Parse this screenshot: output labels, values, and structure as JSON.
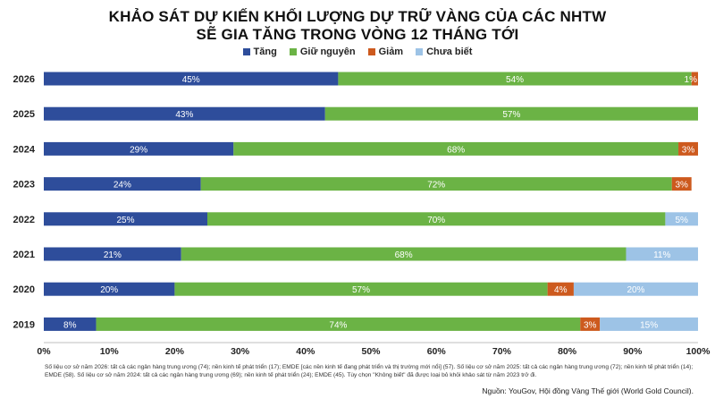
{
  "chart_data": {
    "type": "bar",
    "orientation": "horizontal",
    "stacked": true,
    "title": "KHẢO SÁT DỰ KIẾN KHỐI LƯỢNG DỰ TRỮ VÀNG CỦA CÁC NHTW",
    "subtitle": "SẼ GIA TĂNG TRONG VÒNG 12 THÁNG TỚI",
    "categories": [
      "2026",
      "2025",
      "2024",
      "2023",
      "2022",
      "2021",
      "2020",
      "2019"
    ],
    "series": [
      {
        "name": "Tăng",
        "color": "#2e4d9b",
        "values": [
          45,
          43,
          29,
          24,
          25,
          21,
          20,
          8
        ]
      },
      {
        "name": "Giữ nguyên",
        "color": "#6bb345",
        "values": [
          54,
          57,
          68,
          72,
          70,
          68,
          57,
          74
        ]
      },
      {
        "name": "Giảm",
        "color": "#cd5a1e",
        "values": [
          1,
          0,
          3,
          3,
          0,
          0,
          4,
          3
        ]
      },
      {
        "name": "Chưa biết",
        "color": "#9dc3e6",
        "values": [
          0,
          0,
          0,
          0,
          5,
          11,
          20,
          15
        ]
      }
    ],
    "xlim": [
      0,
      100
    ],
    "xticks": [
      "0%",
      "10%",
      "20%",
      "30%",
      "40%",
      "50%",
      "60%",
      "70%",
      "80%",
      "90%",
      "100%"
    ],
    "value_suffix": "%",
    "legend_position": "top",
    "grid": false
  },
  "notes": {
    "base": "Số liệu cơ sở năm 2026: tất cả các ngân hàng trung ương (74); nền kinh tế phát triển (17); EMDE  [các nền kinh tế đang phát triển và thị trường mới nổi] (57). Số liệu cơ sở năm 2025: tất cả các ngân hàng trung ương (72); nền kinh tế phát triển (14); EMDE   (58). Số liệu cơ sở năm 2024: tất cả các ngân hàng trung ương (69); nền kinh tế phát triển (24); EMDE   (45). Tùy chọn \"Không biết\" đã được loại bỏ khỏi khảo sát từ năm 2023 trở đi.",
    "source": "Nguồn: YouGov, Hội đồng Vàng Thế giới (World Gold Council)."
  }
}
